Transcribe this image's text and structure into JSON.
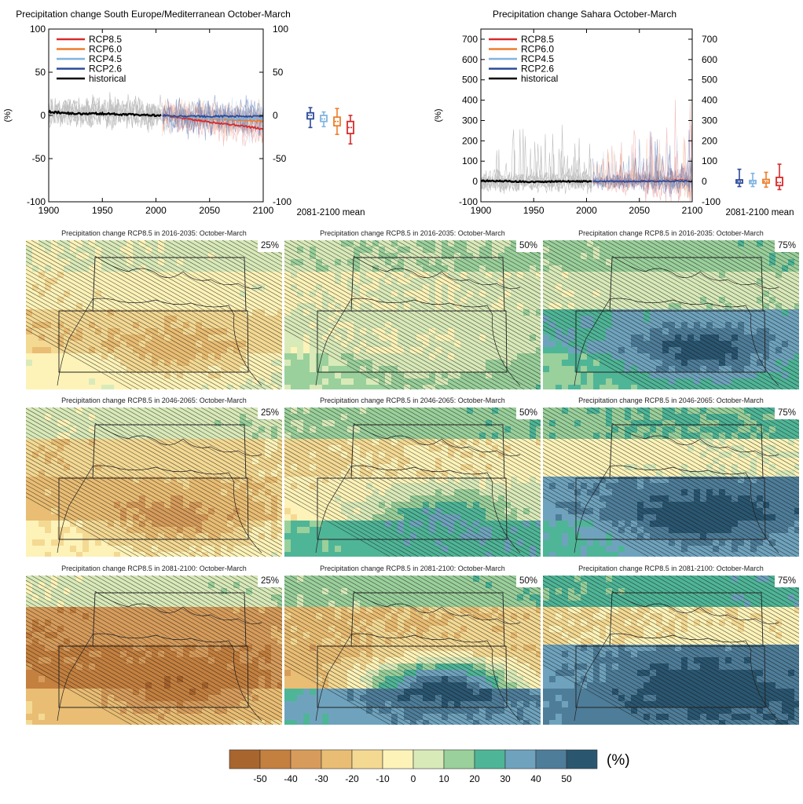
{
  "colors": {
    "rcp85": "#d62b2b",
    "rcp60": "#ee7d2a",
    "rcp45": "#7fb4df",
    "rcp26": "#2c4a9a",
    "historical": "#000000",
    "ensemble": "#8c8c8c"
  },
  "chart_data": [
    {
      "type": "line",
      "title": "Precipitation change South Europe/Mediterranean October-March",
      "ylabel": "(%)",
      "xlim": [
        1900,
        2100
      ],
      "ylim": [
        -100,
        100
      ],
      "x_ticks": [
        "1900",
        "1950",
        "2000",
        "2050",
        "2100"
      ],
      "y_ticks": [
        "100",
        "50",
        "0",
        "-50",
        "-100"
      ],
      "legend": "top-left",
      "series": [
        {
          "name": "RCP8.5",
          "color": "#d62b2b",
          "x": [
            2006,
            2020,
            2040,
            2060,
            2080,
            2100
          ],
          "values": [
            0,
            -2,
            -6,
            -9,
            -12,
            -16
          ]
        },
        {
          "name": "RCP6.0",
          "color": "#ee7d2a",
          "x": [
            2006,
            2020,
            2040,
            2060,
            2080,
            2100
          ],
          "values": [
            0,
            -1,
            -2,
            -4,
            -5,
            -7
          ]
        },
        {
          "name": "RCP4.5",
          "color": "#7fb4df",
          "x": [
            2006,
            2020,
            2040,
            2060,
            2080,
            2100
          ],
          "values": [
            0,
            -1,
            -2,
            -3,
            -4,
            -4
          ]
        },
        {
          "name": "RCP2.6",
          "color": "#2c4a9a",
          "x": [
            2006,
            2020,
            2040,
            2060,
            2080,
            2100
          ],
          "values": [
            0,
            -1,
            -1,
            -1,
            -1,
            -1
          ]
        },
        {
          "name": "historical",
          "color": "#000000",
          "x": [
            1900,
            1925,
            1950,
            1975,
            2005
          ],
          "values": [
            4,
            2,
            2,
            1,
            0
          ]
        }
      ],
      "boxplots_label": "2081-2100 mean",
      "boxplots": [
        {
          "scenario": "RCP2.6",
          "low": -14,
          "q1": -4,
          "median": 0,
          "q3": 3,
          "high": 9
        },
        {
          "scenario": "RCP4.5",
          "low": -13,
          "q1": -7,
          "median": -4,
          "q3": 0,
          "high": 4
        },
        {
          "scenario": "RCP6.0",
          "low": -22,
          "q1": -12,
          "median": -7,
          "q3": -2,
          "high": 8
        },
        {
          "scenario": "RCP8.5",
          "low": -33,
          "q1": -21,
          "median": -14,
          "q3": -7,
          "high": 0
        }
      ]
    },
    {
      "type": "line",
      "title": "Precipitation change Sahara October-March",
      "ylabel": "(%)",
      "xlim": [
        1900,
        2100
      ],
      "ylim": [
        -100,
        750
      ],
      "x_ticks": [
        "1900",
        "1950",
        "2000",
        "2050",
        "2100"
      ],
      "y_ticks": [
        "700",
        "600",
        "500",
        "400",
        "300",
        "200",
        "100",
        "0",
        "-100"
      ],
      "legend": "top-left",
      "series": [
        {
          "name": "RCP8.5",
          "color": "#d62b2b",
          "x": [
            2006,
            2020,
            2040,
            2060,
            2080,
            2100
          ],
          "values": [
            0,
            0,
            2,
            3,
            5,
            6
          ]
        },
        {
          "name": "RCP6.0",
          "color": "#ee7d2a",
          "x": [
            2006,
            2020,
            2040,
            2060,
            2080,
            2100
          ],
          "values": [
            0,
            0,
            1,
            2,
            3,
            3
          ]
        },
        {
          "name": "RCP4.5",
          "color": "#7fb4df",
          "x": [
            2006,
            2020,
            2040,
            2060,
            2080,
            2100
          ],
          "values": [
            0,
            0,
            1,
            1,
            2,
            2
          ]
        },
        {
          "name": "RCP2.6",
          "color": "#2c4a9a",
          "x": [
            2006,
            2020,
            2040,
            2060,
            2080,
            2100
          ],
          "values": [
            0,
            0,
            0,
            1,
            1,
            1
          ]
        },
        {
          "name": "historical",
          "color": "#000000",
          "x": [
            1900,
            1925,
            1950,
            1975,
            2005
          ],
          "values": [
            3,
            1,
            -2,
            0,
            0
          ]
        }
      ],
      "boxplots_label": "2081-2100 mean",
      "boxplots": [
        {
          "scenario": "RCP2.6",
          "low": -25,
          "q1": -8,
          "median": 0,
          "q3": 8,
          "high": 60
        },
        {
          "scenario": "RCP4.5",
          "low": -25,
          "q1": -10,
          "median": -2,
          "q3": 5,
          "high": 40
        },
        {
          "scenario": "RCP6.0",
          "low": -28,
          "q1": -8,
          "median": 0,
          "q3": 10,
          "high": 45
        },
        {
          "scenario": "RCP8.5",
          "low": -40,
          "q1": -20,
          "median": -5,
          "q3": 20,
          "high": 85
        }
      ]
    },
    {
      "type": "heatmap",
      "maps": [
        {
          "title": "Precipitation change RCP8.5 in 2016-2035: October-March",
          "percentile": "25%",
          "pattern": "p25a"
        },
        {
          "title": "Precipitation change RCP8.5 in 2016-2035: October-March",
          "percentile": "50%",
          "pattern": "p50a"
        },
        {
          "title": "Precipitation change RCP8.5 in 2016-2035: October-March",
          "percentile": "75%",
          "pattern": "p75a"
        },
        {
          "title": "Precipitation change RCP8.5 in 2046-2065: October-March",
          "percentile": "25%",
          "pattern": "p25b"
        },
        {
          "title": "Precipitation change RCP8.5 in 2046-2065: October-March",
          "percentile": "50%",
          "pattern": "p50b"
        },
        {
          "title": "Precipitation change RCP8.5 in 2046-2065: October-March",
          "percentile": "75%",
          "pattern": "p75b"
        },
        {
          "title": "Precipitation change RCP8.5 in 2081-2100: October-March",
          "percentile": "25%",
          "pattern": "p25c"
        },
        {
          "title": "Precipitation change RCP8.5 in 2081-2100: October-March",
          "percentile": "50%",
          "pattern": "p50c"
        },
        {
          "title": "Precipitation change RCP8.5 in 2081-2100: October-March",
          "percentile": "75%",
          "pattern": "p75c"
        }
      ],
      "colorbar": {
        "unit": "(%)",
        "tick_labels": [
          "-50",
          "-40",
          "-30",
          "-20",
          "-10",
          "0",
          "10",
          "20",
          "30",
          "40",
          "50"
        ],
        "colors": [
          "#a9652e",
          "#c4803f",
          "#d79c5b",
          "#e9bd73",
          "#f4d993",
          "#fdf3b8",
          "#d9eab9",
          "#9ad09b",
          "#4fb597",
          "#6fa3bd",
          "#4e7d99",
          "#2a5670"
        ]
      }
    }
  ]
}
